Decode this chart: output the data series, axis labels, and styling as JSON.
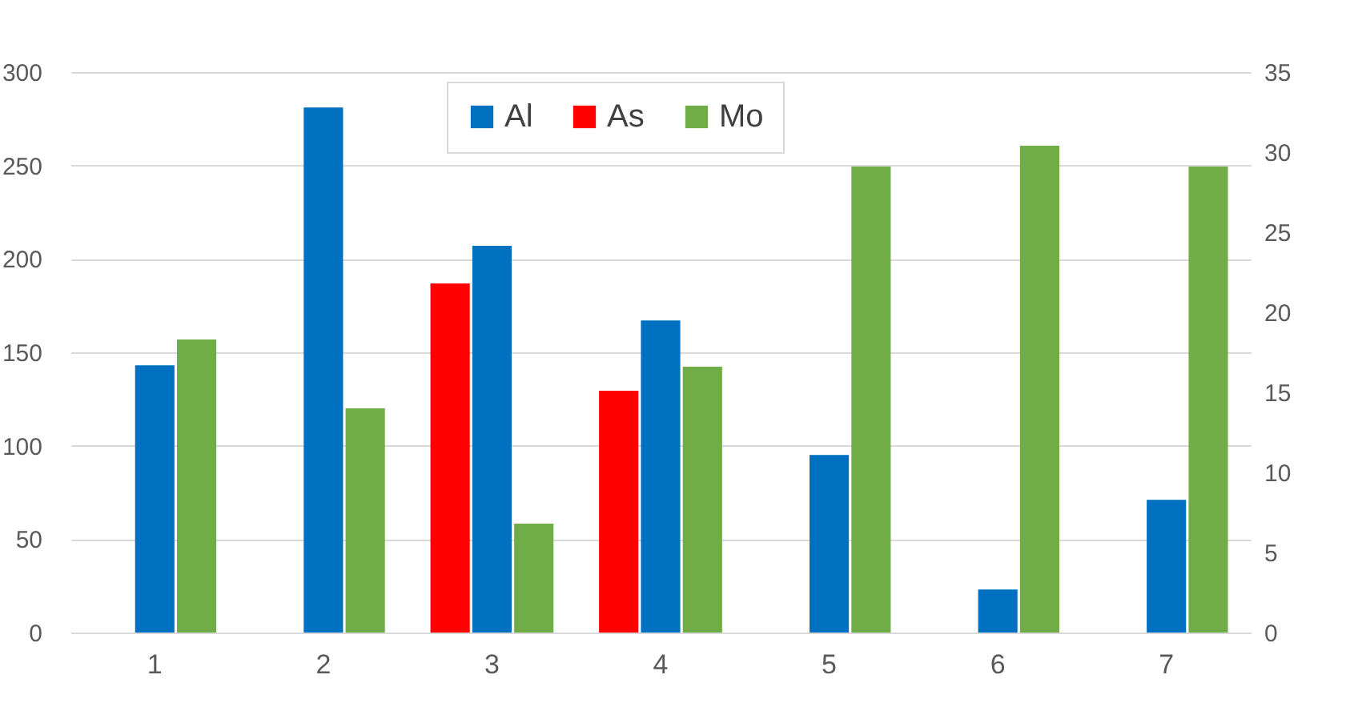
{
  "chart_data": {
    "type": "bar",
    "categories": [
      "1",
      "2",
      "3",
      "4",
      "5",
      "6",
      "7"
    ],
    "series": [
      {
        "name": "Al",
        "color": "#0070c0",
        "values": [
          143,
          281,
          207,
          167,
          95,
          23,
          71
        ]
      },
      {
        "name": "As",
        "color": "#ff0000",
        "axis": "y2",
        "values": [
          null,
          null,
          21.8,
          15.1,
          null,
          null,
          null
        ]
      },
      {
        "name": "Mo",
        "color": "#70ad47",
        "axis": "y2",
        "values": [
          18.3,
          14.0,
          6.8,
          16.6,
          29.1,
          30.4,
          29.1
        ]
      }
    ],
    "ylim": [
      0,
      300
    ],
    "yticks": [
      0,
      50,
      100,
      150,
      200,
      250,
      300
    ],
    "y2lim": [
      0,
      35
    ],
    "y2ticks": [
      0,
      5,
      10,
      15,
      20,
      25,
      30,
      35
    ],
    "grid": "y",
    "legend": "top"
  }
}
